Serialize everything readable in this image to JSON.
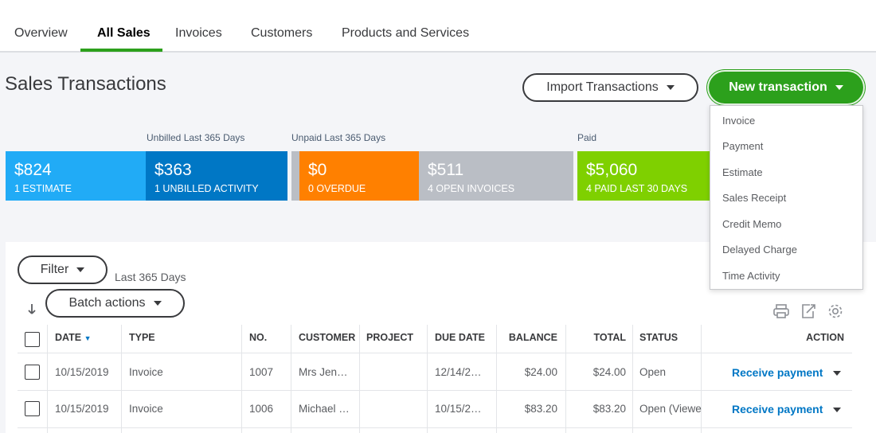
{
  "tabs": [
    {
      "label": "Overview"
    },
    {
      "label": "All Sales"
    },
    {
      "label": "Invoices"
    },
    {
      "label": "Customers"
    },
    {
      "label": "Products and Services"
    }
  ],
  "page_title": "Sales Transactions",
  "import_label": "Import Transactions",
  "new_transaction_label": "New transaction",
  "new_transaction_menu": [
    "Invoice",
    "Payment",
    "Estimate",
    "Sales Receipt",
    "Credit Memo",
    "Delayed Charge",
    "Time Activity"
  ],
  "money_bar": {
    "captions": [
      "Unbilled Last 365 Days",
      "Unpaid Last 365 Days",
      "Paid"
    ],
    "cards": [
      {
        "amount": "$824",
        "label": "1 ESTIMATE",
        "color": "#21abf6"
      },
      {
        "amount": "$363",
        "label": "1 UNBILLED ACTIVITY",
        "color": "#0077c5"
      },
      {
        "amount": "$0",
        "label": "0 OVERDUE",
        "color": "#ff8000"
      },
      {
        "amount": "$511",
        "label": "4 OPEN INVOICES",
        "color": "#babec5"
      },
      {
        "amount": "$5,060",
        "label": "4 PAID LAST 30 DAYS",
        "color": "#7fd000"
      }
    ]
  },
  "filter_label": "Filter",
  "date_range": "Last 365 Days",
  "batch_label": "Batch actions",
  "icons": [
    "print-icon",
    "export-icon",
    "settings-gear-icon",
    "sort-arrow-icon"
  ],
  "table": {
    "headers": [
      "DATE",
      "TYPE",
      "NO.",
      "CUSTOMER",
      "PROJECT",
      "DUE DATE",
      "BALANCE",
      "TOTAL",
      "STATUS",
      "ACTION"
    ],
    "rows": [
      {
        "date": "10/15/2019",
        "type": "Invoice",
        "no": "1007",
        "customer": "Mrs Jen…",
        "project": "",
        "due": "12/14/2…",
        "balance": "$24.00",
        "total": "$24.00",
        "status": "Open",
        "action": "Receive payment"
      },
      {
        "date": "10/15/2019",
        "type": "Invoice",
        "no": "1006",
        "customer": "Michael …",
        "project": "",
        "due": "10/15/2…",
        "balance": "$83.20",
        "total": "$83.20",
        "status": "Open (Viewe",
        "action": "Receive payment"
      }
    ]
  }
}
